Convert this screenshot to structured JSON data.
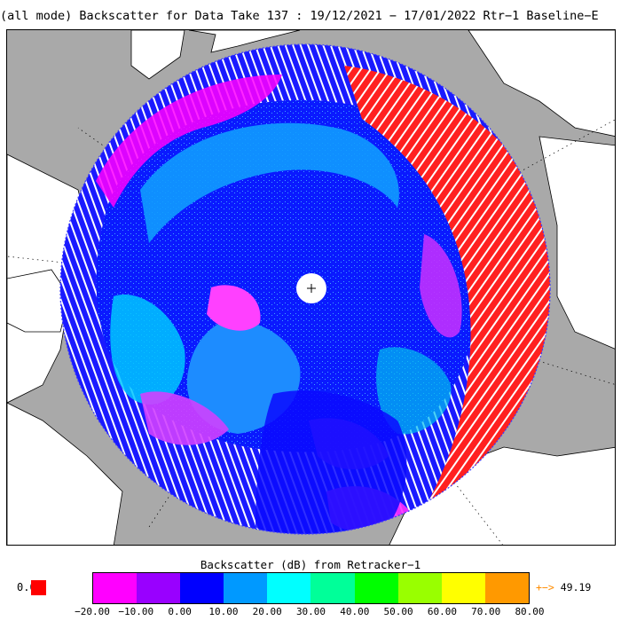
{
  "title": "(all mode) Backscatter for Data Take 137 : 19/12/2021 − 17/01/2022 Rtr−1 Baseline−E",
  "colorbar": {
    "title": "Backscatter (dB) from Retracker−1",
    "ticks": [
      "−20.00",
      "−10.00",
      "0.00",
      "10.00",
      "20.00",
      "30.00",
      "40.00",
      "50.00",
      "60.00",
      "70.00",
      "80.00"
    ],
    "colors": [
      "#ff00ff",
      "#9900ff",
      "#0000ff",
      "#0099ff",
      "#00ffff",
      "#00ff99",
      "#00ff00",
      "#99ff00",
      "#ffff00",
      "#ff9900"
    ],
    "below_value": "0.0",
    "below_color": "#ff0000",
    "above_arrow": "+−>",
    "above_value": "49.19",
    "above_arrow_color": "#ff8c00"
  },
  "map": {
    "ocean_color": "#a9a9a9",
    "land_color": "#ffffff",
    "coastline_color": "#000000",
    "pole_hole_color": "#ffffff",
    "graticule_color": "#000000"
  }
}
